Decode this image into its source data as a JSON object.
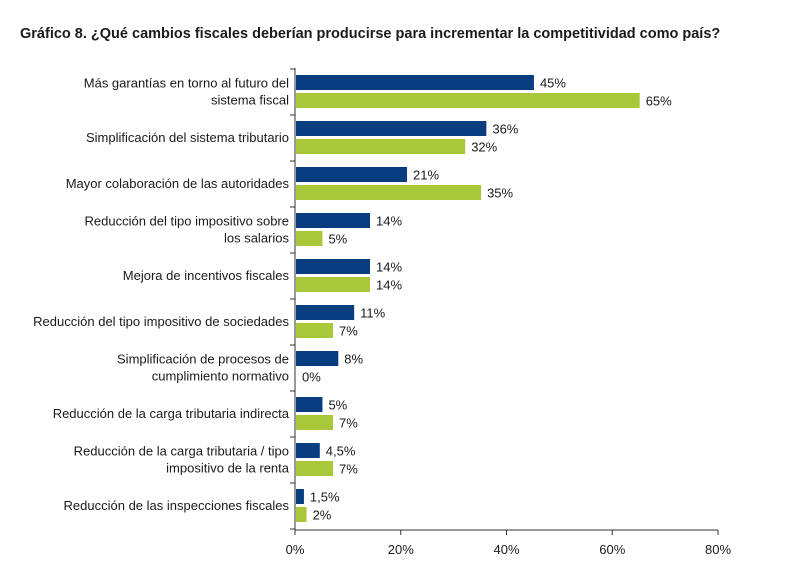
{
  "chart_data": {
    "type": "bar",
    "orientation": "horizontal",
    "title": "Gráfico 8. ¿Qué cambios fiscales deberían producirse para incrementar la competitividad como país?",
    "xlim": [
      0,
      80
    ],
    "x_ticks": [
      "0%",
      "20%",
      "40%",
      "60%",
      "80%"
    ],
    "x_tick_values": [
      0,
      20,
      40,
      60,
      80
    ],
    "grid": false,
    "legend": "none",
    "categories": [
      [
        "Más garantías en torno al futuro del",
        "sistema fiscal"
      ],
      [
        "Simplificación del sistema tributario"
      ],
      [
        "Mayor colaboración de las autoridades"
      ],
      [
        "Reducción del tipo impositivo sobre",
        "los salarios"
      ],
      [
        "Mejora de incentivos fiscales"
      ],
      [
        "Reducción del tipo impositivo de sociedades"
      ],
      [
        "Simplificación de procesos de",
        "cumplimiento normativo"
      ],
      [
        "Reducción de la carga tributaria indirecta"
      ],
      [
        "Reducción de la carga tributaria / tipo",
        "impositivo de la renta"
      ],
      [
        "Reducción de las inspecciones fiscales"
      ]
    ],
    "series": [
      {
        "color": "#0a3d7f",
        "values": [
          45,
          36,
          21,
          14,
          14,
          11,
          8,
          5,
          4.5,
          1.5
        ],
        "labels": [
          "45%",
          "36%",
          "21%",
          "14%",
          "14%",
          "11%",
          "8%",
          "5%",
          "4,5%",
          "1,5%"
        ]
      },
      {
        "color": "#a8c73a",
        "values": [
          65,
          32,
          35,
          5,
          14,
          7,
          0,
          7,
          7,
          2
        ],
        "labels": [
          "65%",
          "32%",
          "35%",
          "5%",
          "14%",
          "7%",
          "0%",
          "7%",
          "7%",
          "2%"
        ]
      }
    ]
  }
}
